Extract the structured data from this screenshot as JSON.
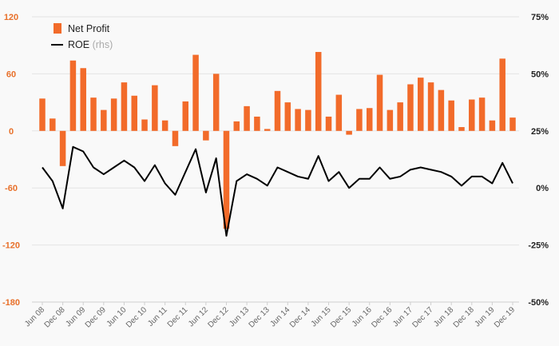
{
  "chart_data": {
    "type": "bar+line",
    "x": [
      "Jun 08",
      "Sep 08",
      "Dec 08",
      "Mar 09",
      "Jun 09",
      "Sep 09",
      "Dec 09",
      "Mar 10",
      "Jun 10",
      "Sep 10",
      "Dec 10",
      "Mar 11",
      "Jun 11",
      "Sep 11",
      "Dec 11",
      "Mar 12",
      "Jun 12",
      "Sep 12",
      "Dec 12",
      "Mar 13",
      "Jun 13",
      "Sep 13",
      "Dec 13",
      "Mar 14",
      "Jun 14",
      "Sep 14",
      "Dec 14",
      "Mar 15",
      "Jun 15",
      "Sep 15",
      "Dec 15",
      "Mar 16",
      "Jun 16",
      "Sep 16",
      "Dec 16",
      "Mar 17",
      "Jun 17",
      "Sep 17",
      "Dec 17",
      "Mar 18",
      "Jun 18",
      "Sep 18",
      "Dec 18",
      "Mar 19",
      "Jun 19",
      "Sep 19",
      "Dec 19"
    ],
    "x_tick_labels": [
      "Jun 08",
      "Dec 08",
      "Jun 09",
      "Dec 09",
      "Jun 10",
      "Dec 10",
      "Jun 11",
      "Dec 11",
      "Jun 12",
      "Dec 12",
      "Jun 13",
      "Dec 13",
      "Jun 14",
      "Dec 14",
      "Jun 15",
      "Dec 15",
      "Jun 16",
      "Dec 16",
      "Jun 17",
      "Dec 17",
      "Jun 18",
      "Dec 18",
      "Jun 19",
      "Dec 19"
    ],
    "series": [
      {
        "name": "Net Profit",
        "type": "bar",
        "axis": "left",
        "color": "#f26b2a",
        "values": [
          34,
          13,
          -37,
          74,
          66,
          35,
          22,
          34,
          51,
          37,
          12,
          48,
          11,
          -16,
          31,
          80,
          -10,
          60,
          -103,
          10,
          26,
          15,
          2,
          42,
          30,
          23,
          22,
          83,
          15,
          38,
          -4,
          23,
          24,
          59,
          22,
          30,
          49,
          56,
          51,
          43,
          32,
          4,
          33,
          35,
          11,
          76,
          14
        ]
      },
      {
        "name": "ROE",
        "name_suffix": "(rhs)",
        "type": "line",
        "axis": "right",
        "color": "#000000",
        "values": [
          9,
          3,
          -9,
          18,
          16,
          9,
          6,
          9,
          12,
          9,
          3,
          10,
          2,
          -3,
          7,
          17,
          -2,
          13,
          -21,
          3,
          6,
          4,
          1,
          9,
          7,
          5,
          4,
          14,
          3,
          7,
          0,
          4,
          4,
          9,
          4,
          5,
          8,
          9,
          8,
          7,
          5,
          1,
          5,
          5,
          2,
          11,
          2
        ]
      }
    ],
    "y_left": {
      "ylim": [
        -180,
        120
      ],
      "ticks": [
        120,
        60,
        0,
        -60,
        -120,
        -180
      ]
    },
    "y_right": {
      "ylim": [
        -50,
        75
      ],
      "ticks": [
        75,
        50,
        25,
        0,
        -25,
        -50
      ],
      "tick_labels": [
        "75%",
        "50%",
        "25%",
        "0%",
        "-25%",
        "-50%"
      ]
    },
    "legend": {
      "position": "top-left",
      "entries": [
        "Net Profit",
        "ROE"
      ]
    },
    "grid": true
  }
}
